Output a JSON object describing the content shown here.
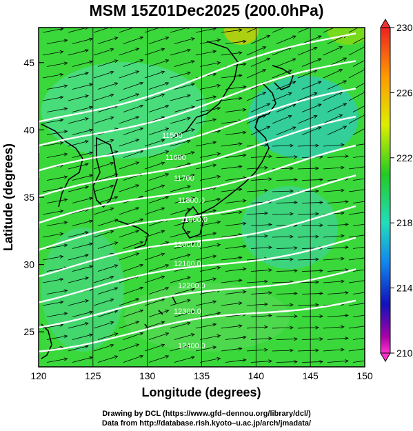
{
  "title": "MSM 15Z01Dec2025 (200.0hPa)",
  "x_axis": {
    "label": "Longitude (degrees)",
    "min": 120,
    "max": 150,
    "ticks": [
      120,
      125,
      130,
      135,
      140,
      145,
      150
    ]
  },
  "y_axis": {
    "label": "Latitude  (degrees)",
    "min": 22.4,
    "max": 47.6,
    "ticks": [
      25,
      30,
      35,
      40,
      45
    ]
  },
  "colorbar": {
    "min": 210,
    "max": 230,
    "labels": [
      230,
      226,
      222,
      218,
      214,
      210
    ]
  },
  "contours": {
    "levels": [
      11500,
      11600,
      11700,
      11800,
      11900,
      12000,
      12100,
      12200,
      12300,
      12400
    ],
    "labels": [
      "11500",
      "11600",
      "11700",
      "11800.0",
      "11900.0",
      "12000.0",
      "12100.0",
      "12200.0",
      "12300.0",
      "12400.0"
    ]
  },
  "credits": {
    "line1": "Drawing by DCL (https://www.gfd–dennou.org/library/dcl/)",
    "line2": "Data from http://database.rish.kyoto–u.ac.jp/arch/jmadata/"
  },
  "colors": {
    "background_field": "#33dd33",
    "contour": "#ffffff",
    "coast": "#000000"
  }
}
